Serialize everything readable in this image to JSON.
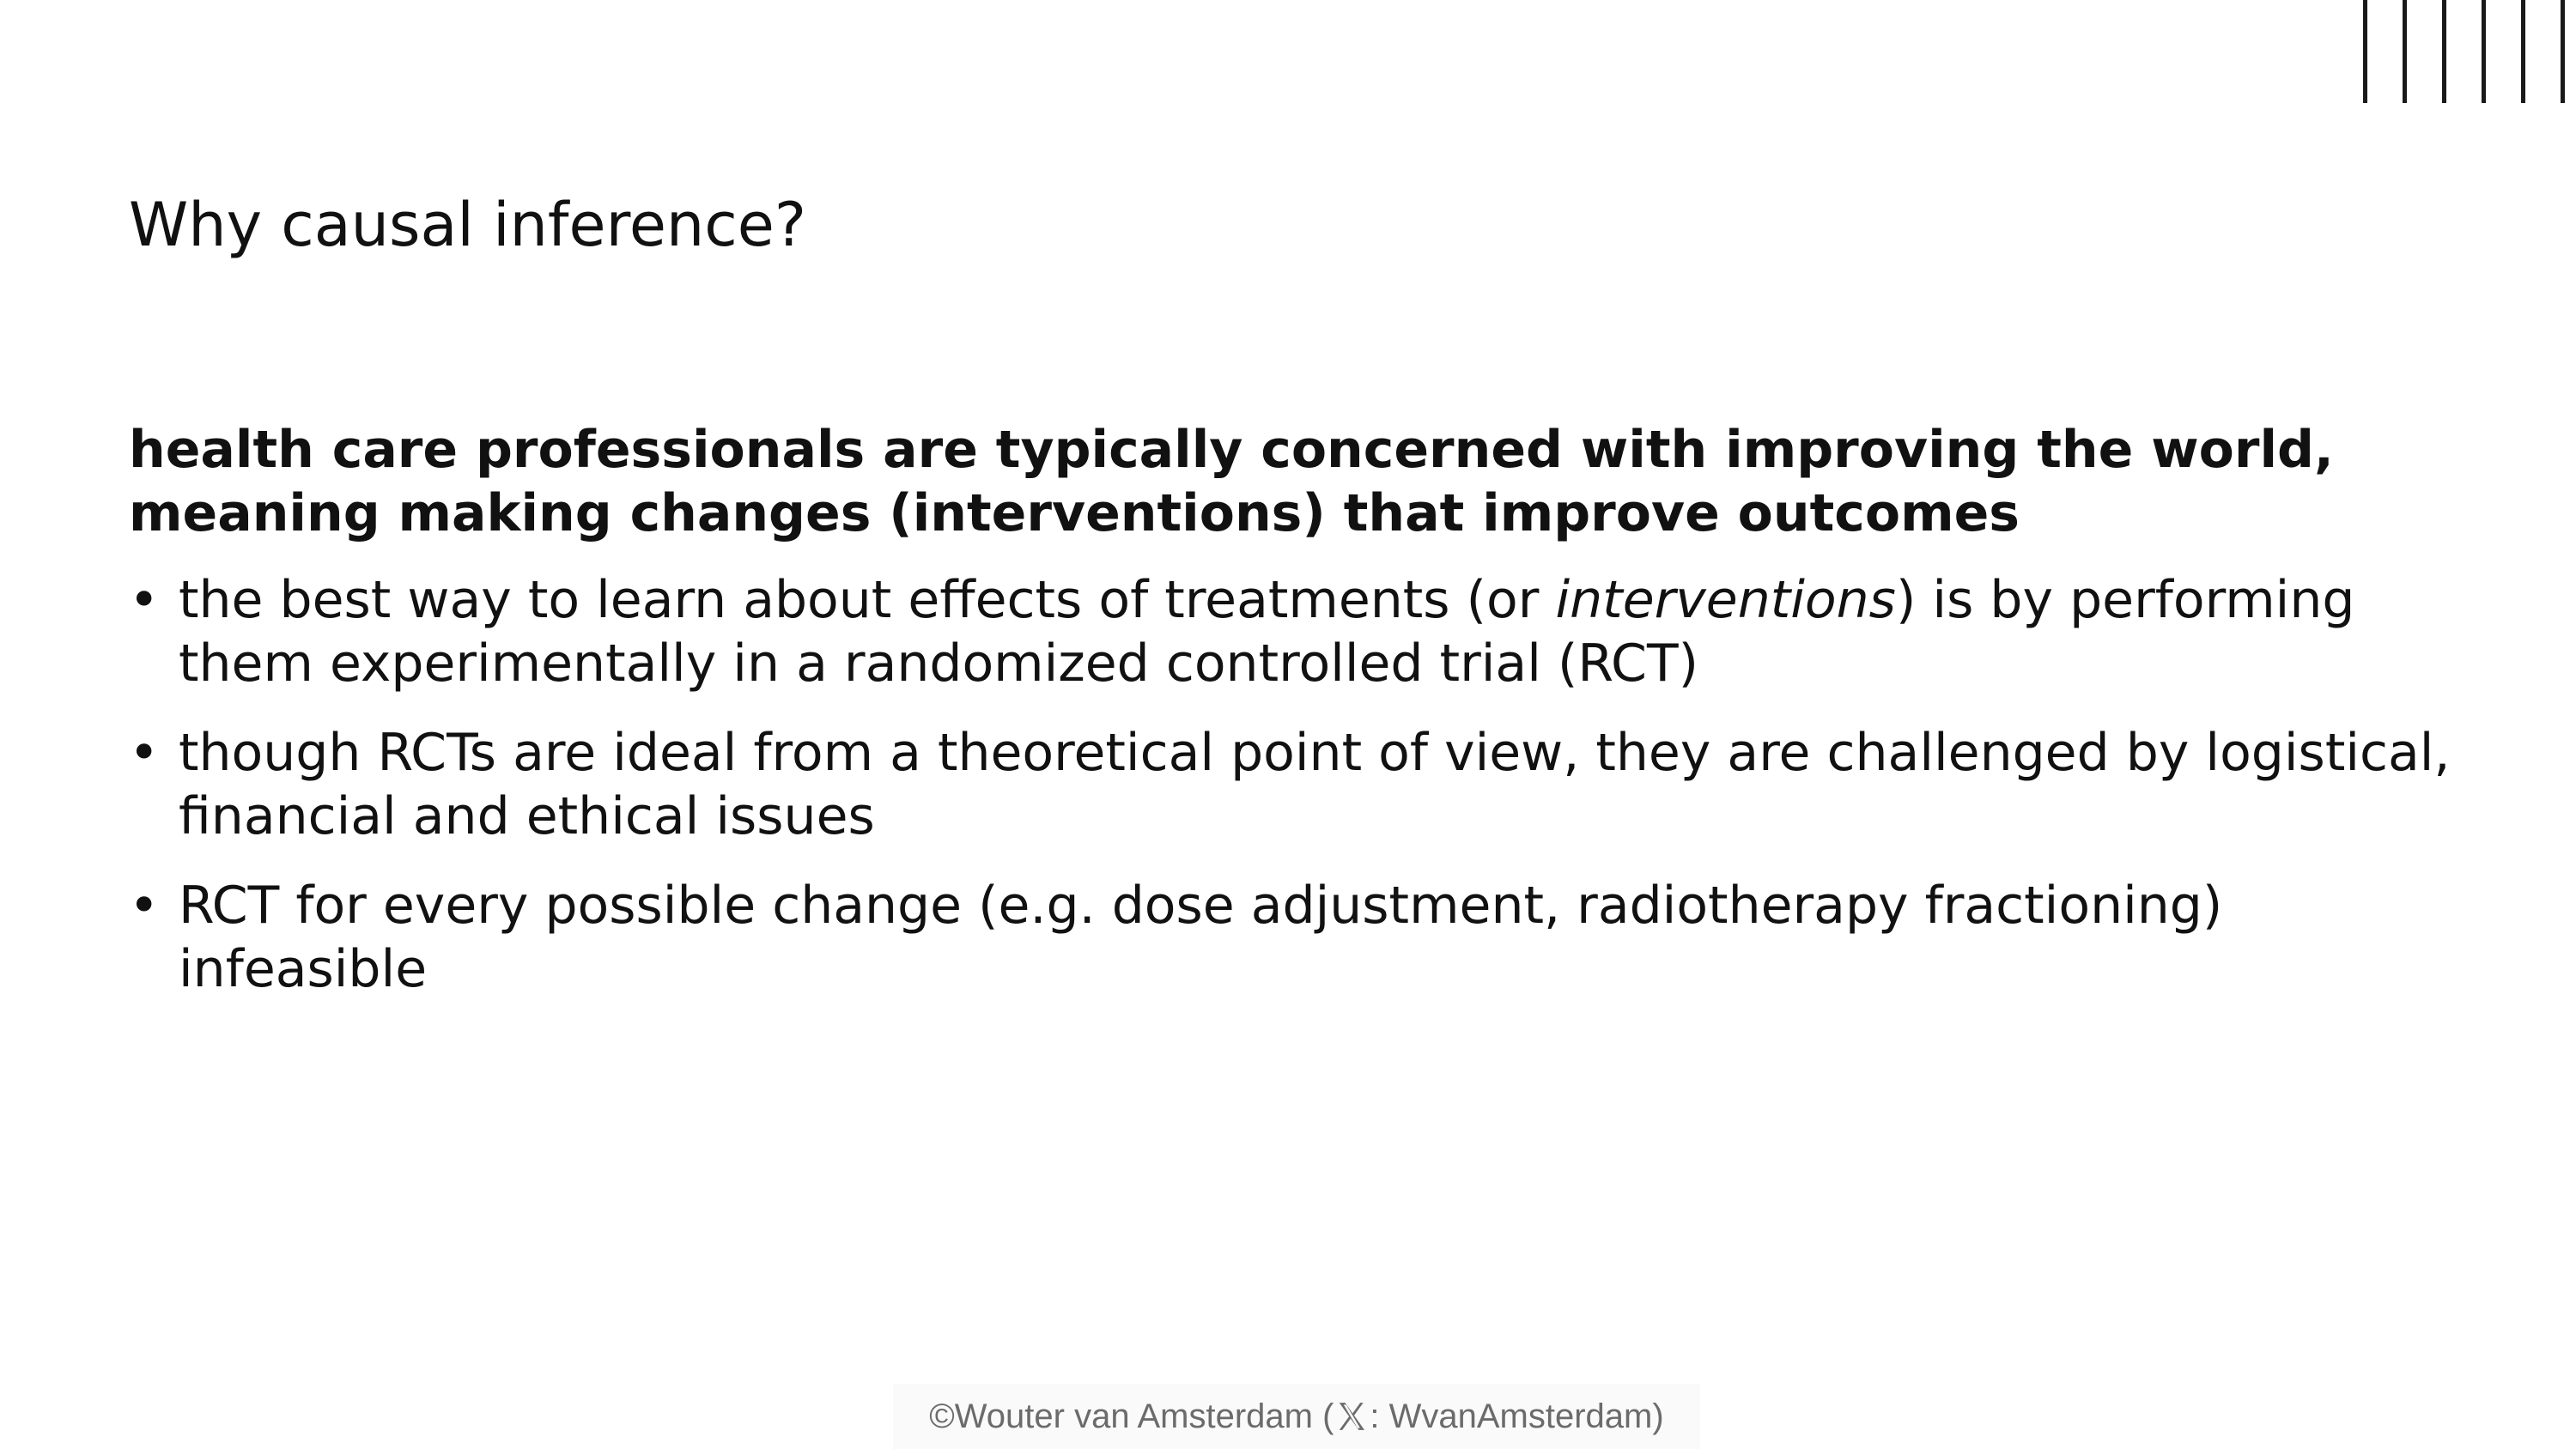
{
  "slide": {
    "title": "Why causal inference?",
    "lead": "health care professionals are typically concerned with improving the world, meaning making changes (interventions) that improve outcomes",
    "bullet_marker": "•",
    "bullets": [
      {
        "before": "the best way to learn about effects of treatments (or ",
        "emphasis": "interventions",
        "after": ") is by performing them experimentally in a randomized controlled trial (RCT)"
      },
      {
        "text": "though RCTs are ideal from a theoretical point of view, they are challenged by logistical, financial and ethical issues"
      },
      {
        "text": "RCT for every possible change (e.g. dose adjustment, radiotherapy fractioning) infeasible"
      }
    ]
  },
  "footer": {
    "copyright": "©Wouter van Amsterdam (",
    "icon": "x-logo-icon",
    "handle": ": WvanAmsterdam)"
  },
  "colors": {
    "text": "#111111",
    "footer_text": "#6b6b6b",
    "decor": "#1a1a1a"
  }
}
